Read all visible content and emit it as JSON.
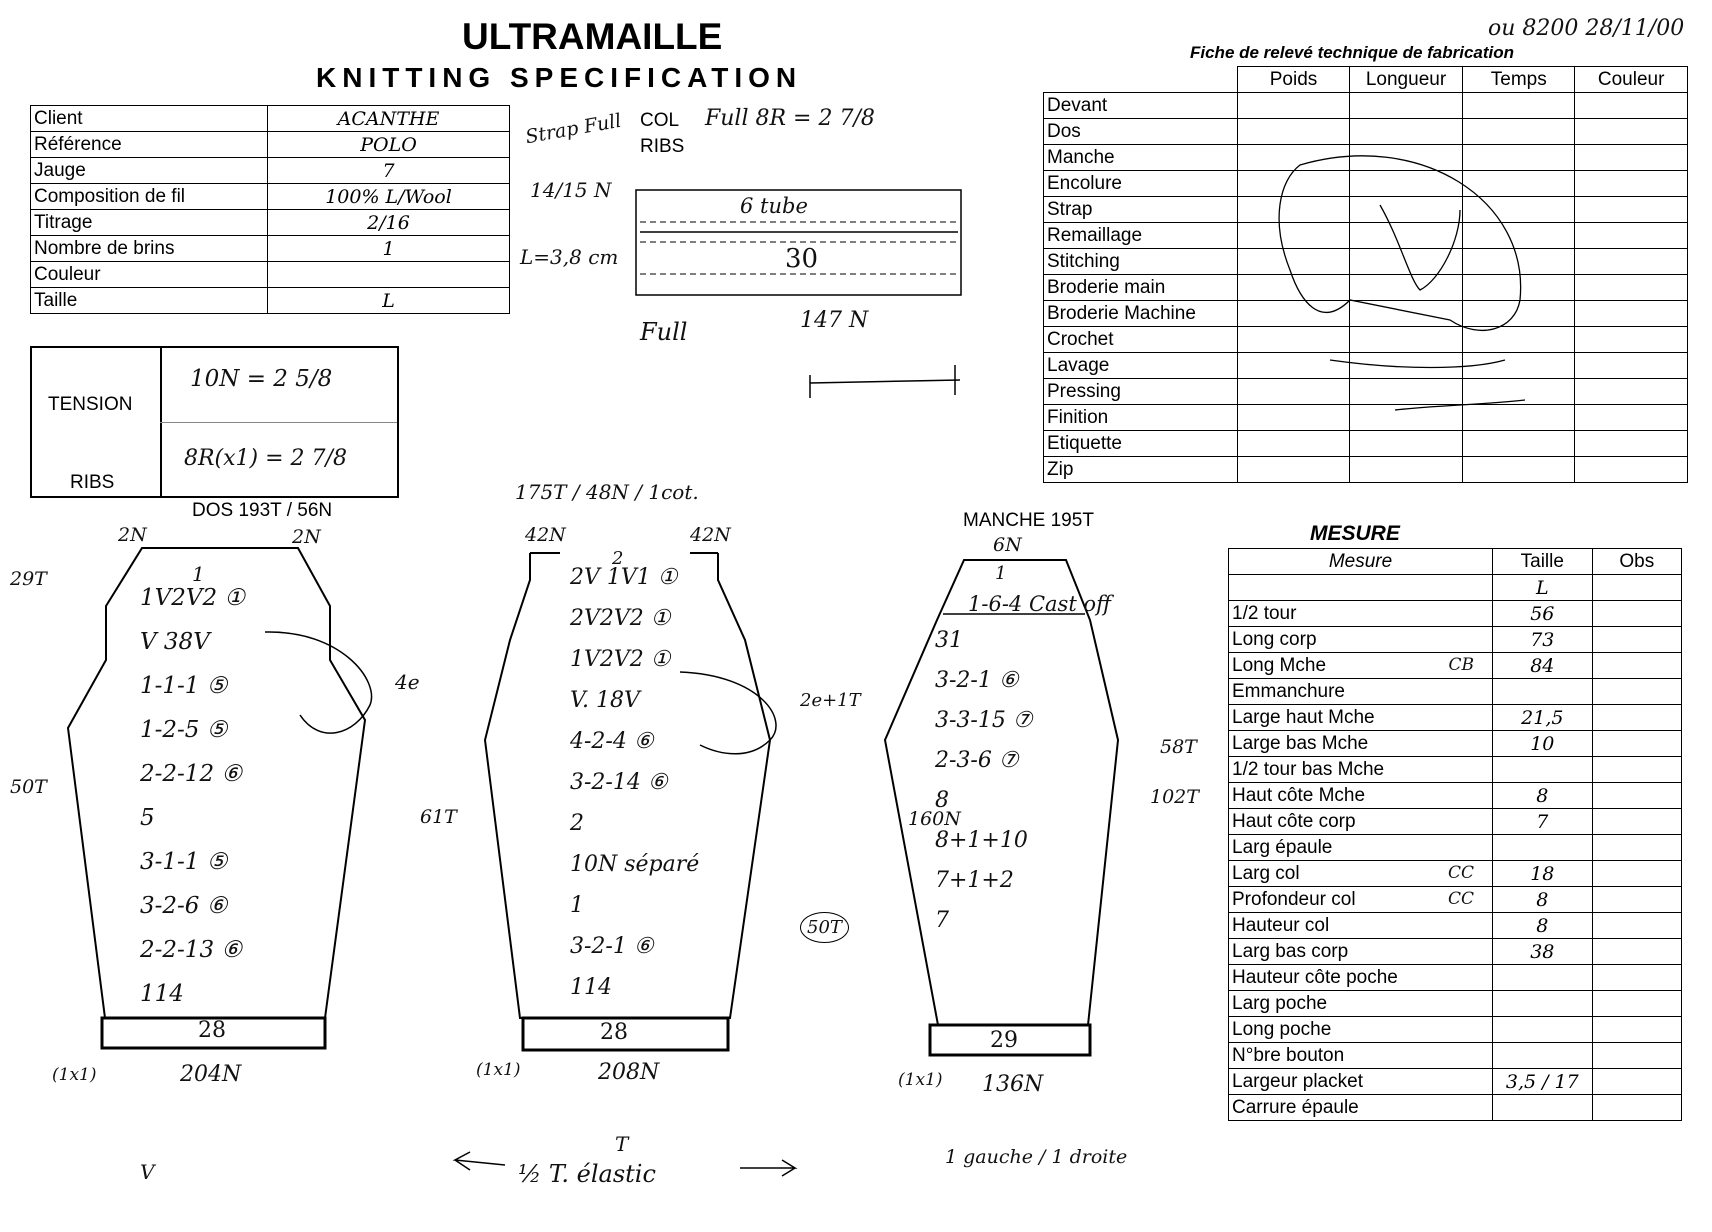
{
  "header": {
    "brand": "ULTRAMAILLE",
    "subtitle": "KNITTING SPECIFICATION",
    "top_right_note": "ou 8200 28/11/00",
    "fiche_title": "Fiche de relevé technique de fabrication"
  },
  "client_table": {
    "rows": [
      {
        "label": "Client",
        "value": "ACANTHE"
      },
      {
        "label": "Référence",
        "value": "POLO"
      },
      {
        "label": "Jauge",
        "value": "7"
      },
      {
        "label": "Composition de fil",
        "value": "100% L/Wool"
      },
      {
        "label": "Titrage",
        "value": "2/16"
      },
      {
        "label": "Nombre de brins",
        "value": "1"
      },
      {
        "label": "Couleur",
        "value": ""
      },
      {
        "label": "Taille",
        "value": "L"
      }
    ]
  },
  "notes_middle": {
    "strap_full": "Strap Full",
    "col_label": "COL",
    "ribs_label": "RIBS",
    "col_full": "Full 8R = 2 7/8",
    "needles": "14/15 N",
    "length": "L=3,8 cm",
    "tube": "6 tube",
    "thirty": "30",
    "full": "Full",
    "n147": "147 N"
  },
  "tension": {
    "tension_label": "TENSION",
    "ribs_label": "RIBS",
    "tension_value": "10N = 2 5/8",
    "ribs_value": "8R(x1) = 2 7/8"
  },
  "fiche_table": {
    "columns": [
      "Poids",
      "Longueur",
      "Temps",
      "Couleur"
    ],
    "rows": [
      "Devant",
      "Dos",
      "Manche",
      "Encolure",
      "Strap",
      "Remaillage",
      "Stitching",
      "Broderie main",
      "Broderie Machine",
      "Crochet",
      "Lavage",
      "Pressing",
      "Finition",
      "Etiquette",
      "Zip"
    ]
  },
  "mesure": {
    "title": "MESURE",
    "col_mesure": "Mesure",
    "col_taille": "Taille",
    "col_obs": "Obs",
    "rows": [
      {
        "label": "",
        "taille": "L",
        "note": ""
      },
      {
        "label": "1/2 tour",
        "taille": "56",
        "note": ""
      },
      {
        "label": "Long corp",
        "taille": "73",
        "note": ""
      },
      {
        "label": "Long Mche",
        "taille": "84",
        "note": "CB"
      },
      {
        "label": "Emmanchure",
        "taille": "",
        "note": ""
      },
      {
        "label": "Large haut Mche",
        "taille": "21,5",
        "note": ""
      },
      {
        "label": "Large bas Mche",
        "taille": "10",
        "note": ""
      },
      {
        "label": "1/2 tour bas Mche",
        "taille": "",
        "note": ""
      },
      {
        "label": "Haut côte Mche",
        "taille": "8",
        "note": ""
      },
      {
        "label": "Haut côte corp",
        "taille": "7",
        "note": ""
      },
      {
        "label": "Larg épaule",
        "taille": "",
        "note": ""
      },
      {
        "label": "Larg col",
        "taille": "18",
        "note": "CC"
      },
      {
        "label": "Profondeur col",
        "taille": "8",
        "note": "CC"
      },
      {
        "label": "Hauteur col",
        "taille": "8",
        "note": ""
      },
      {
        "label": "Larg bas corp",
        "taille": "38",
        "note": ""
      },
      {
        "label": "Hauteur côte poche",
        "taille": "",
        "note": ""
      },
      {
        "label": "Larg poche",
        "taille": "",
        "note": ""
      },
      {
        "label": "Long poche",
        "taille": "",
        "note": ""
      },
      {
        "label": "N°bre bouton",
        "taille": "",
        "note": ""
      },
      {
        "label": "Largeur placket",
        "taille": "3,5 / 17",
        "note": ""
      },
      {
        "label": "Carrure épaule",
        "taille": "",
        "note": ""
      }
    ]
  },
  "dos": {
    "title": "DOS 193T / 56N",
    "left_top": "2N",
    "right_top": "2N",
    "side_top": "29T",
    "side_mid": "50T",
    "lines": [
      "1V2V2 ①",
      "V 38V",
      "1-1-1 ⑤",
      "1-2-5 ⑤",
      "2-2-12 ⑥",
      "5",
      "3-1-1 ⑤",
      "3-2-6 ⑥",
      "2-2-13 ⑥",
      "114"
    ],
    "top_mark": "1",
    "note_4e": "4e",
    "band": "28",
    "bottom_left": "(1x1)",
    "bottom": "204N"
  },
  "front": {
    "title": "175T / 48N / 1cot.",
    "left_top": "42N",
    "right_top": "42N",
    "side_mid": "61T",
    "lines": [
      "2V 1V1 ①",
      "2V2V2 ①",
      "1V2V2 ①",
      "V. 18V",
      "4-2-4 ⑥",
      "3-2-14 ⑥",
      "2",
      "10N séparé",
      "1",
      "3-2-1 ⑥",
      "114"
    ],
    "top_mark": "2",
    "note_2e": "2e+1T",
    "note_50t": "50T",
    "band": "28",
    "bottom_left": "(1x1)",
    "bottom": "208N"
  },
  "manche": {
    "title": "MANCHE 195T",
    "top": "6N",
    "top_mark": "1",
    "cast": "1-6-4 Cast off",
    "lines": [
      "31",
      "3-2-1 ⑥",
      "3-3-15 ⑦",
      "2-3-6 ⑦",
      "8",
      "8+1+10",
      "7+1+2",
      "7"
    ],
    "side_left": "160N",
    "side_right_1": "58T",
    "side_right_2": "102T",
    "band": "29",
    "bottom_left": "(1x1)",
    "bottom": "136N"
  },
  "footer": {
    "half_t": "½ T. élastic",
    "t_mark": "T",
    "gauche": "1 gauche / 1 droite",
    "check1": "V"
  }
}
